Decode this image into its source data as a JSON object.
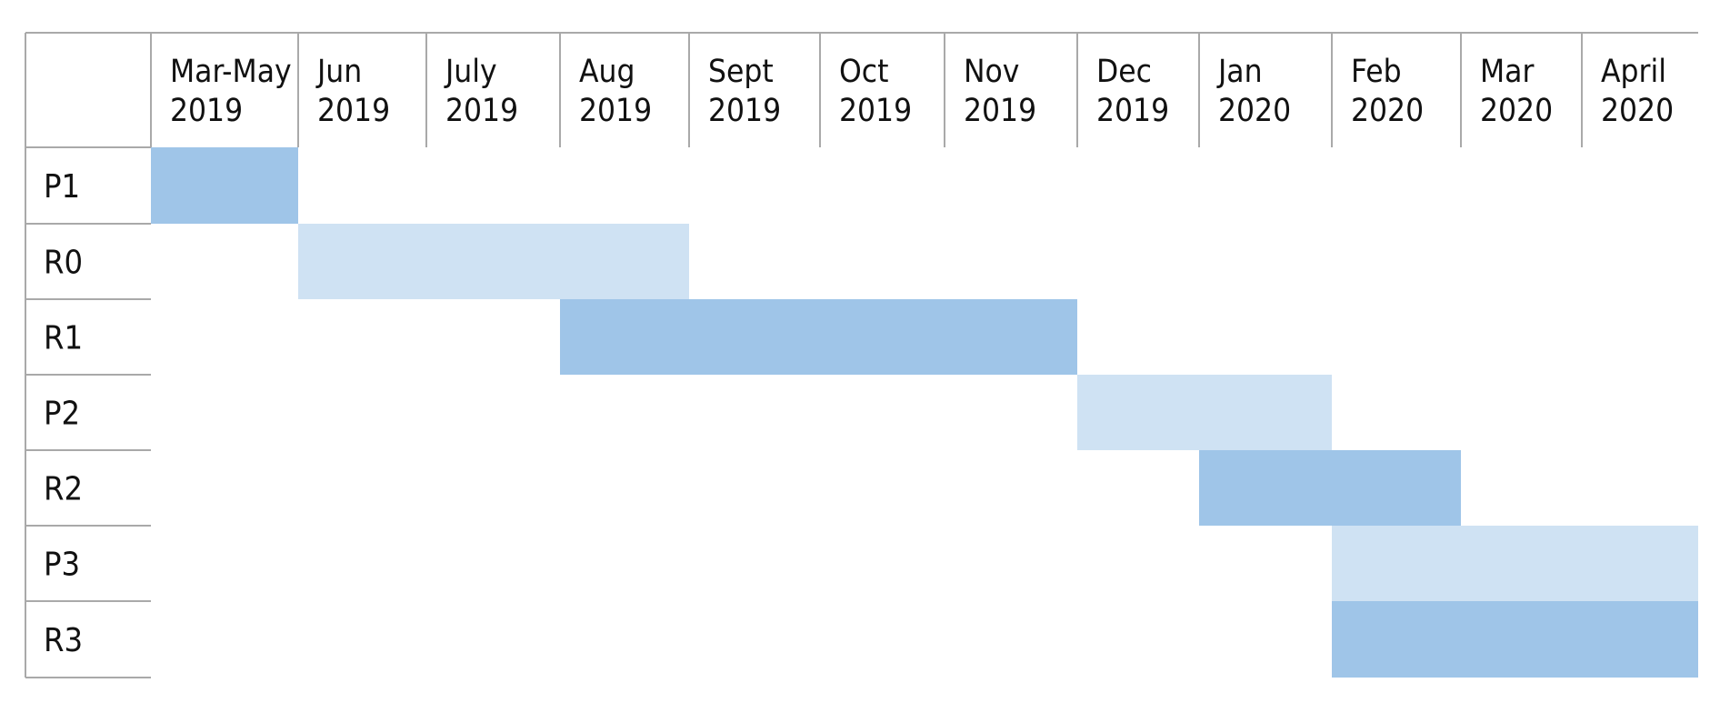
{
  "chart_data": {
    "type": "gantt",
    "title": "",
    "periods": [
      [
        "Mar-May",
        "2019"
      ],
      [
        "Jun",
        "2019"
      ],
      [
        "July",
        "2019"
      ],
      [
        "Aug",
        "2019"
      ],
      [
        "Sept",
        "2019"
      ],
      [
        "Oct",
        "2019"
      ],
      [
        "Nov",
        "2019"
      ],
      [
        "Dec",
        "2019"
      ],
      [
        "Jan",
        "2020"
      ],
      [
        "Feb",
        "2020"
      ],
      [
        "Mar",
        "2020"
      ],
      [
        "April",
        "2020"
      ]
    ],
    "tasks": [
      {
        "label": "P1",
        "start_period": 0,
        "end_period": 0,
        "shade": "dark"
      },
      {
        "label": "R0",
        "start_period": 1,
        "end_period": 3,
        "shade": "light"
      },
      {
        "label": "R1",
        "start_period": 3,
        "end_period": 6,
        "shade": "dark"
      },
      {
        "label": "P2",
        "start_period": 7,
        "end_period": 8,
        "shade": "light"
      },
      {
        "label": "R2",
        "start_period": 8,
        "end_period": 9,
        "shade": "dark"
      },
      {
        "label": "P3",
        "start_period": 9,
        "end_period": 11,
        "shade": "light"
      },
      {
        "label": "R3",
        "start_period": 9,
        "end_period": 11,
        "shade": "dark"
      }
    ],
    "colors": {
      "dark": "#9fc5e8",
      "light": "#cfe2f3",
      "grid": "#a9a9a9",
      "text": "#111111"
    }
  }
}
